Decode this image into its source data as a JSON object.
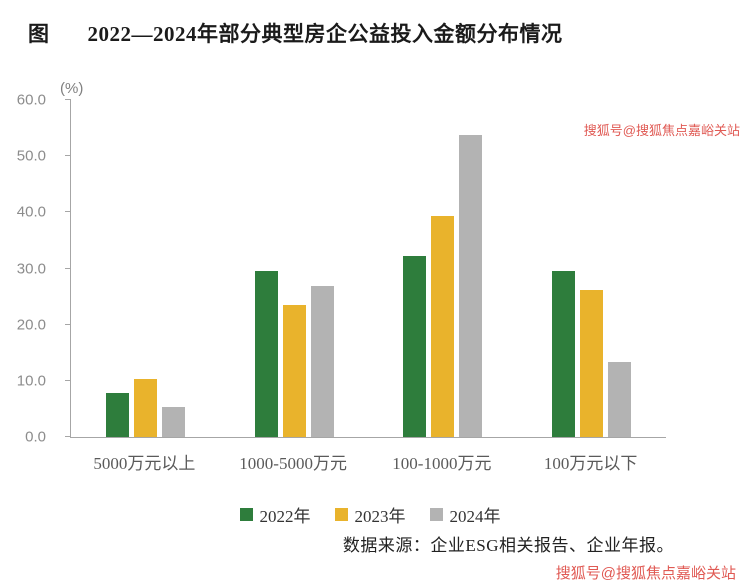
{
  "title": {
    "prefix": "图",
    "text": "2022—2024年部分典型房企公益投入金额分布情况"
  },
  "chart_data": {
    "type": "bar",
    "title": "2022—2024年部分典型房企公益投入金额分布情况",
    "unit_label": "(%)",
    "xlabel": "",
    "ylabel": "(%)",
    "ylim": [
      0,
      60
    ],
    "grid": false,
    "legend_position": "bottom",
    "ytick_labels": [
      "0.0",
      "10.0",
      "20.0",
      "30.0",
      "40.0",
      "50.0",
      "60.0"
    ],
    "categories": [
      "5000万元以上",
      "1000-5000万元",
      "100-1000万元",
      "100万元以下"
    ],
    "series": [
      {
        "name": "2022年",
        "color": "#2e7d3c",
        "values": [
          7.9,
          29.5,
          32.3,
          29.5
        ]
      },
      {
        "name": "2023年",
        "color": "#e9b32c",
        "values": [
          10.3,
          23.5,
          39.4,
          26.2
        ]
      },
      {
        "name": "2024年",
        "color": "#b3b3b3",
        "values": [
          5.3,
          26.8,
          53.8,
          13.3
        ]
      }
    ]
  },
  "source": "数据来源：企业ESG相关报告、企业年报。",
  "watermark": "搜狐号@搜狐焦点嘉峪关站",
  "colors": {
    "axis": "#a6a6a6",
    "tick_label": "#8c8c8c",
    "title_text": "#1b1b1b",
    "watermark": "#e05a54",
    "series_2022": "#2e7d3c",
    "series_2023": "#e9b32c",
    "series_2024": "#b3b3b3"
  }
}
